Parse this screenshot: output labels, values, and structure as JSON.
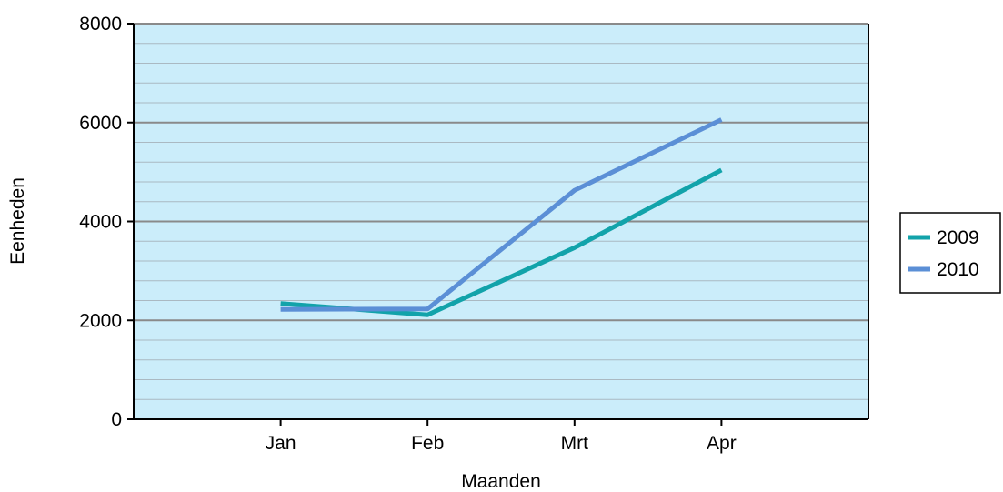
{
  "chart_data": {
    "type": "line",
    "title": "",
    "xlabel": "Maanden",
    "ylabel": "Eenheden",
    "categories": [
      "Jan",
      "Feb",
      "Mrt",
      "Apr"
    ],
    "ylim": [
      0,
      8000
    ],
    "yticks": [
      0,
      2000,
      4000,
      6000,
      8000
    ],
    "minor_grid_step": 400,
    "grid": true,
    "legend_position": "right",
    "plot_background": "#cbedfa",
    "series": [
      {
        "name": "2009",
        "color": "#12a3aa",
        "values": [
          2340,
          2110,
          3470,
          5040
        ]
      },
      {
        "name": "2010",
        "color": "#5b8fd6",
        "values": [
          2220,
          2230,
          4630,
          6060
        ]
      }
    ]
  }
}
